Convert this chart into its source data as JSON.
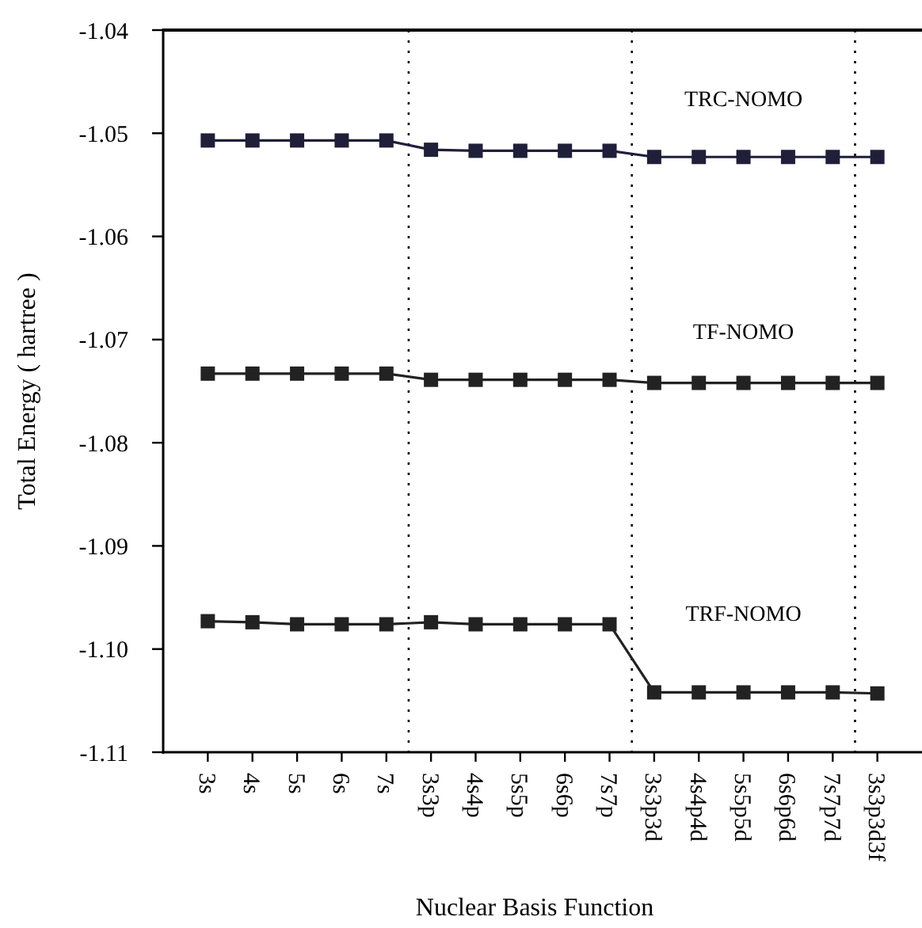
{
  "chart_data": {
    "type": "line",
    "xlabel": "Nuclear Basis Function",
    "ylabel": "Total Energy ( hartree )",
    "categories": [
      "3s",
      "4s",
      "5s",
      "6s",
      "7s",
      "3s3p",
      "4s4p",
      "5s5p",
      "6s6p",
      "7s7p",
      "3s3p3d",
      "4s4p4d",
      "5s5p5d",
      "6s6p6d",
      "7s7p7d",
      "3s3p3d3f"
    ],
    "series": [
      {
        "color": "#1f1f3a",
        "values": [
          -1.0507,
          -1.0507,
          -1.0507,
          -1.0507,
          -1.0507,
          -1.0516,
          -1.0517,
          -1.0517,
          -1.0517,
          -1.0517,
          -1.0523,
          -1.0523,
          -1.0523,
          -1.0523,
          -1.0523,
          -1.0523
        ]
      },
      {
        "color": "#222222",
        "values": [
          -1.0733,
          -1.0733,
          -1.0733,
          -1.0733,
          -1.0733,
          -1.0739,
          -1.0739,
          -1.0739,
          -1.0739,
          -1.0739,
          -1.0742,
          -1.0742,
          -1.0742,
          -1.0742,
          -1.0742,
          -1.0742
        ]
      },
      {
        "color": "#222222",
        "values": [
          -1.0973,
          -1.0974,
          -1.0976,
          -1.0976,
          -1.0976,
          -1.0974,
          -1.0976,
          -1.0976,
          -1.0976,
          -1.0976,
          -1.1042,
          -1.1042,
          -1.1042,
          -1.1042,
          -1.1042,
          -1.1043
        ]
      }
    ],
    "annotations": [
      "TRC-NOMO",
      "TF-NOMO",
      "TRF-NOMO"
    ],
    "ylim": [
      -1.11,
      -1.04
    ],
    "yticks": [
      -1.11,
      {
        "value": -1.1,
        "label": "-1.10"
      },
      -1.09,
      -1.08,
      -1.07,
      -1.06,
      -1.05,
      -1.04
    ],
    "marker": "square",
    "line_style": "solid"
  }
}
